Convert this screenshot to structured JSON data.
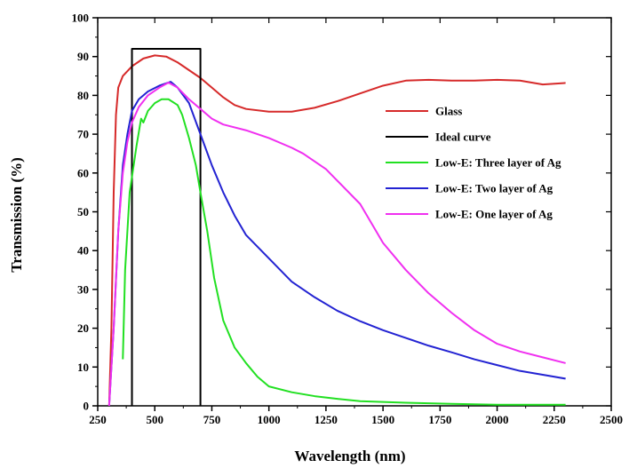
{
  "chart_data": {
    "type": "line",
    "xlabel": "Wavelength (nm)",
    "ylabel": "Transmission (%)",
    "xlim": [
      250,
      2500
    ],
    "ylim": [
      0,
      100
    ],
    "x_ticks": [
      250,
      500,
      750,
      1000,
      1250,
      1500,
      1750,
      2000,
      2250,
      2500
    ],
    "x_tick_labels": [
      "250",
      "500",
      "750",
      "1000",
      "1250",
      "1500",
      "1750",
      "2000",
      "2250",
      "2500"
    ],
    "y_ticks": [
      0,
      10,
      20,
      30,
      40,
      50,
      60,
      70,
      80,
      90,
      100
    ],
    "y_tick_labels": [
      "0",
      "10",
      "20",
      "30",
      "40",
      "50",
      "60",
      "70",
      "80",
      "90",
      "100"
    ],
    "legend_position": "right",
    "series": [
      {
        "name": "Glass",
        "color": "#d62a2a",
        "points": [
          [
            300,
            0
          ],
          [
            310,
            20
          ],
          [
            320,
            55
          ],
          [
            330,
            75
          ],
          [
            340,
            82
          ],
          [
            360,
            85
          ],
          [
            400,
            87.5
          ],
          [
            450,
            89.5
          ],
          [
            500,
            90.3
          ],
          [
            550,
            90
          ],
          [
            600,
            88.5
          ],
          [
            650,
            86.5
          ],
          [
            700,
            84.5
          ],
          [
            750,
            82
          ],
          [
            800,
            79.5
          ],
          [
            850,
            77.5
          ],
          [
            900,
            76.5
          ],
          [
            1000,
            75.8
          ],
          [
            1100,
            75.8
          ],
          [
            1200,
            76.8
          ],
          [
            1300,
            78.5
          ],
          [
            1400,
            80.5
          ],
          [
            1500,
            82.5
          ],
          [
            1600,
            83.8
          ],
          [
            1700,
            84
          ],
          [
            1800,
            83.8
          ],
          [
            1900,
            83.8
          ],
          [
            2000,
            84
          ],
          [
            2100,
            83.8
          ],
          [
            2200,
            82.8
          ],
          [
            2300,
            83.2
          ]
        ]
      },
      {
        "name": "Ideal curve",
        "color": "#000000",
        "points": [
          [
            400,
            0
          ],
          [
            400,
            92
          ],
          [
            700,
            92
          ],
          [
            700,
            0
          ]
        ]
      },
      {
        "name": "Low-E: Three layer of Ag",
        "color": "#22e022",
        "points": [
          [
            360,
            12
          ],
          [
            370,
            35
          ],
          [
            390,
            55
          ],
          [
            420,
            67
          ],
          [
            440,
            74
          ],
          [
            450,
            73
          ],
          [
            470,
            76
          ],
          [
            500,
            78
          ],
          [
            530,
            79
          ],
          [
            560,
            79
          ],
          [
            600,
            77.5
          ],
          [
            620,
            75
          ],
          [
            650,
            69
          ],
          [
            680,
            62
          ],
          [
            700,
            55
          ],
          [
            730,
            45
          ],
          [
            760,
            33
          ],
          [
            800,
            22
          ],
          [
            850,
            15
          ],
          [
            900,
            11
          ],
          [
            950,
            7.5
          ],
          [
            1000,
            5
          ],
          [
            1100,
            3.5
          ],
          [
            1200,
            2.5
          ],
          [
            1300,
            1.8
          ],
          [
            1400,
            1.2
          ],
          [
            1600,
            0.8
          ],
          [
            1800,
            0.5
          ],
          [
            2000,
            0.3
          ],
          [
            2300,
            0.3
          ]
        ]
      },
      {
        "name": "Low-E: Two layer of Ag",
        "color": "#2323d2",
        "points": [
          [
            300,
            0
          ],
          [
            320,
            20
          ],
          [
            340,
            45
          ],
          [
            360,
            62
          ],
          [
            380,
            70
          ],
          [
            400,
            76
          ],
          [
            430,
            79
          ],
          [
            470,
            81
          ],
          [
            520,
            82.5
          ],
          [
            570,
            83.5
          ],
          [
            600,
            82
          ],
          [
            650,
            78
          ],
          [
            700,
            70
          ],
          [
            750,
            62
          ],
          [
            800,
            55
          ],
          [
            850,
            49
          ],
          [
            900,
            44
          ],
          [
            1000,
            38
          ],
          [
            1050,
            35
          ],
          [
            1100,
            32
          ],
          [
            1200,
            28
          ],
          [
            1300,
            24.5
          ],
          [
            1400,
            21.8
          ],
          [
            1500,
            19.5
          ],
          [
            1600,
            17.5
          ],
          [
            1700,
            15.5
          ],
          [
            1800,
            13.8
          ],
          [
            1900,
            12
          ],
          [
            2000,
            10.5
          ],
          [
            2100,
            9
          ],
          [
            2200,
            8
          ],
          [
            2300,
            7
          ]
        ]
      },
      {
        "name": "Low-E: One layer of Ag",
        "color": "#f030f0",
        "points": [
          [
            300,
            0
          ],
          [
            320,
            20
          ],
          [
            340,
            45
          ],
          [
            360,
            60
          ],
          [
            380,
            68
          ],
          [
            400,
            73
          ],
          [
            430,
            77
          ],
          [
            470,
            80
          ],
          [
            520,
            82
          ],
          [
            560,
            83.3
          ],
          [
            600,
            82
          ],
          [
            650,
            79
          ],
          [
            700,
            76.5
          ],
          [
            750,
            74
          ],
          [
            800,
            72.5
          ],
          [
            900,
            71
          ],
          [
            1000,
            69
          ],
          [
            1100,
            66.5
          ],
          [
            1150,
            65
          ],
          [
            1250,
            61
          ],
          [
            1300,
            58
          ],
          [
            1400,
            52
          ],
          [
            1450,
            47
          ],
          [
            1500,
            42
          ],
          [
            1600,
            35
          ],
          [
            1700,
            29
          ],
          [
            1800,
            24
          ],
          [
            1900,
            19.5
          ],
          [
            2000,
            16
          ],
          [
            2100,
            14
          ],
          [
            2200,
            12.5
          ],
          [
            2300,
            11
          ]
        ]
      }
    ]
  }
}
